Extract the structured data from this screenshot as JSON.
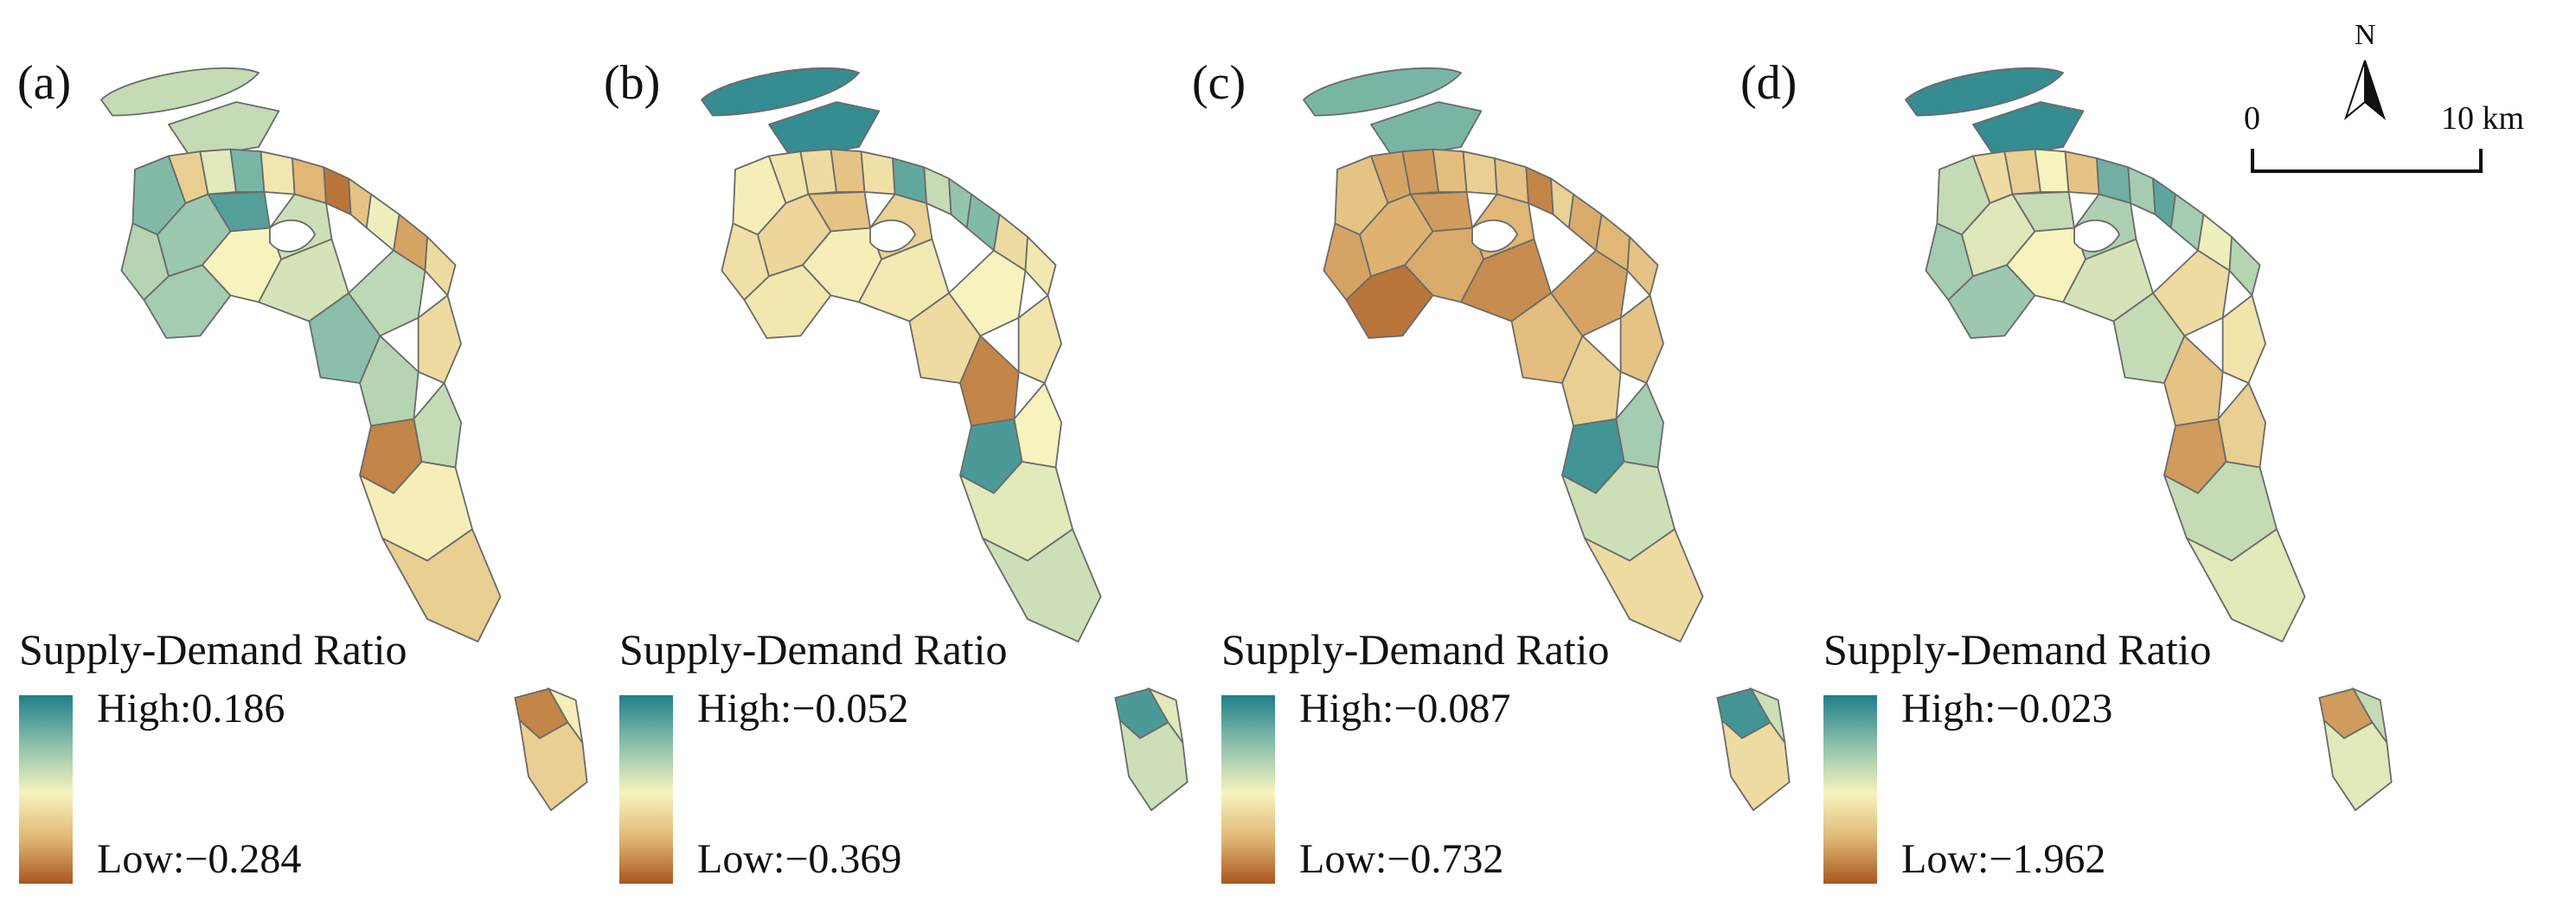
{
  "legend_title": "Supply-Demand Ratio",
  "colors": {
    "ramp": [
      "#1f7f8a",
      "#8fc2ac",
      "#f7f3be",
      "#e0b775",
      "#a8561f"
    ],
    "outline": "#6b6b6b"
  },
  "panels": [
    {
      "label": "(a)",
      "high": "High:0.186",
      "low": "Low:−0.284",
      "class_values": [
        0.62,
        0.78,
        0.35,
        0.55,
        0.8,
        0.45,
        0.25,
        0.08,
        0.3,
        0.52,
        0.2,
        0.4,
        0.66,
        0.72,
        0.88,
        0.6,
        0.7,
        0.5,
        0.58,
        0.64,
        0.4,
        0.76,
        0.66,
        0.62,
        0.12,
        0.48,
        0.35
      ]
    },
    {
      "label": "(b)",
      "high": "High:−0.052",
      "low": "Low:−0.369",
      "class_values": [
        0.95,
        0.48,
        0.44,
        0.4,
        0.3,
        0.42,
        0.85,
        0.62,
        0.74,
        0.78,
        0.4,
        0.45,
        0.42,
        0.38,
        0.3,
        0.36,
        0.45,
        0.48,
        0.46,
        0.5,
        0.44,
        0.4,
        0.12,
        0.5,
        0.9,
        0.55,
        0.6
      ]
    },
    {
      "label": "(c)",
      "high": "High:−0.087",
      "low": "Low:−0.732",
      "class_values": [
        0.8,
        0.3,
        0.2,
        0.18,
        0.28,
        0.35,
        0.3,
        0.12,
        0.36,
        0.22,
        0.25,
        0.3,
        0.2,
        0.24,
        0.18,
        0.25,
        0.08,
        0.22,
        0.14,
        0.2,
        0.3,
        0.28,
        0.35,
        0.7,
        0.92,
        0.6,
        0.4
      ]
    },
    {
      "label": "(d)",
      "high": "High:−0.023",
      "low": "Low:−1.962",
      "class_values": [
        0.95,
        0.62,
        0.4,
        0.35,
        0.5,
        0.3,
        0.82,
        0.7,
        0.86,
        0.7,
        0.52,
        0.66,
        0.7,
        0.56,
        0.62,
        0.68,
        0.72,
        0.5,
        0.58,
        0.4,
        0.44,
        0.62,
        0.3,
        0.35,
        0.18,
        0.62,
        0.55
      ]
    }
  ],
  "north_arrow": {
    "label": "N"
  },
  "scale_bar": {
    "start": "0",
    "end": "10 km"
  }
}
